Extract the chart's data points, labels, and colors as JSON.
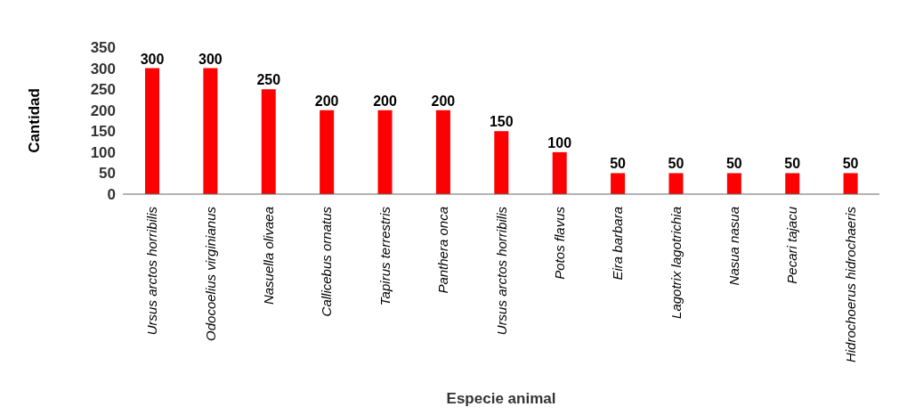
{
  "chart_data": {
    "type": "bar",
    "xlabel": "Especie animal",
    "ylabel": "Cantidad",
    "categories": [
      "Ursus arctos horribilis",
      "Odocoelius virginianus",
      "Nasuella olivaea",
      "Callicebus ornatus",
      "Tapirus terrestris",
      "Panthera onca",
      "Ursus arctos horribilis",
      "Potos flavus",
      "Eira barbara",
      "Lagotrix lagotrichia",
      "Nasua nasua",
      "Pecari tajacu",
      "Hidrochoerus hidrochaeris"
    ],
    "values": [
      300,
      300,
      250,
      200,
      200,
      200,
      150,
      100,
      50,
      50,
      50,
      50,
      50
    ],
    "color": "#ff0000",
    "ylim": [
      0,
      350
    ],
    "yticks": [
      0,
      50,
      100,
      150,
      200,
      250,
      300,
      350
    ],
    "grid": false,
    "data_labels": true
  }
}
